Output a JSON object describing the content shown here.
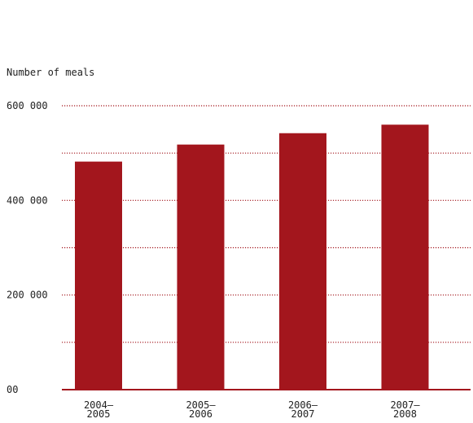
{
  "chart_data": {
    "type": "bar",
    "title": "",
    "xlabel": "",
    "ylabel": "Number of meals",
    "categories": [
      [
        "2004–",
        "2005"
      ],
      [
        "2005–",
        "2006"
      ],
      [
        "2006–",
        "2007"
      ],
      [
        "2007–",
        "2008"
      ]
    ],
    "values": [
      482000,
      518000,
      542000,
      560000
    ],
    "ylim": [
      0,
      600000
    ],
    "gridlines": [
      100000,
      200000,
      300000,
      400000,
      500000,
      600000
    ],
    "y_ticks": [
      {
        "value": 0,
        "label": "00"
      },
      {
        "value": 200000,
        "label": "200 000"
      },
      {
        "value": 400000,
        "label": "400 000"
      },
      {
        "value": 600000,
        "label": "600 000"
      }
    ],
    "grid": true,
    "grid_style": "dotted",
    "legend": "none",
    "colors": {
      "bar": "#a3161d",
      "grid": "#a3161d",
      "axis": "#a3161d"
    }
  }
}
